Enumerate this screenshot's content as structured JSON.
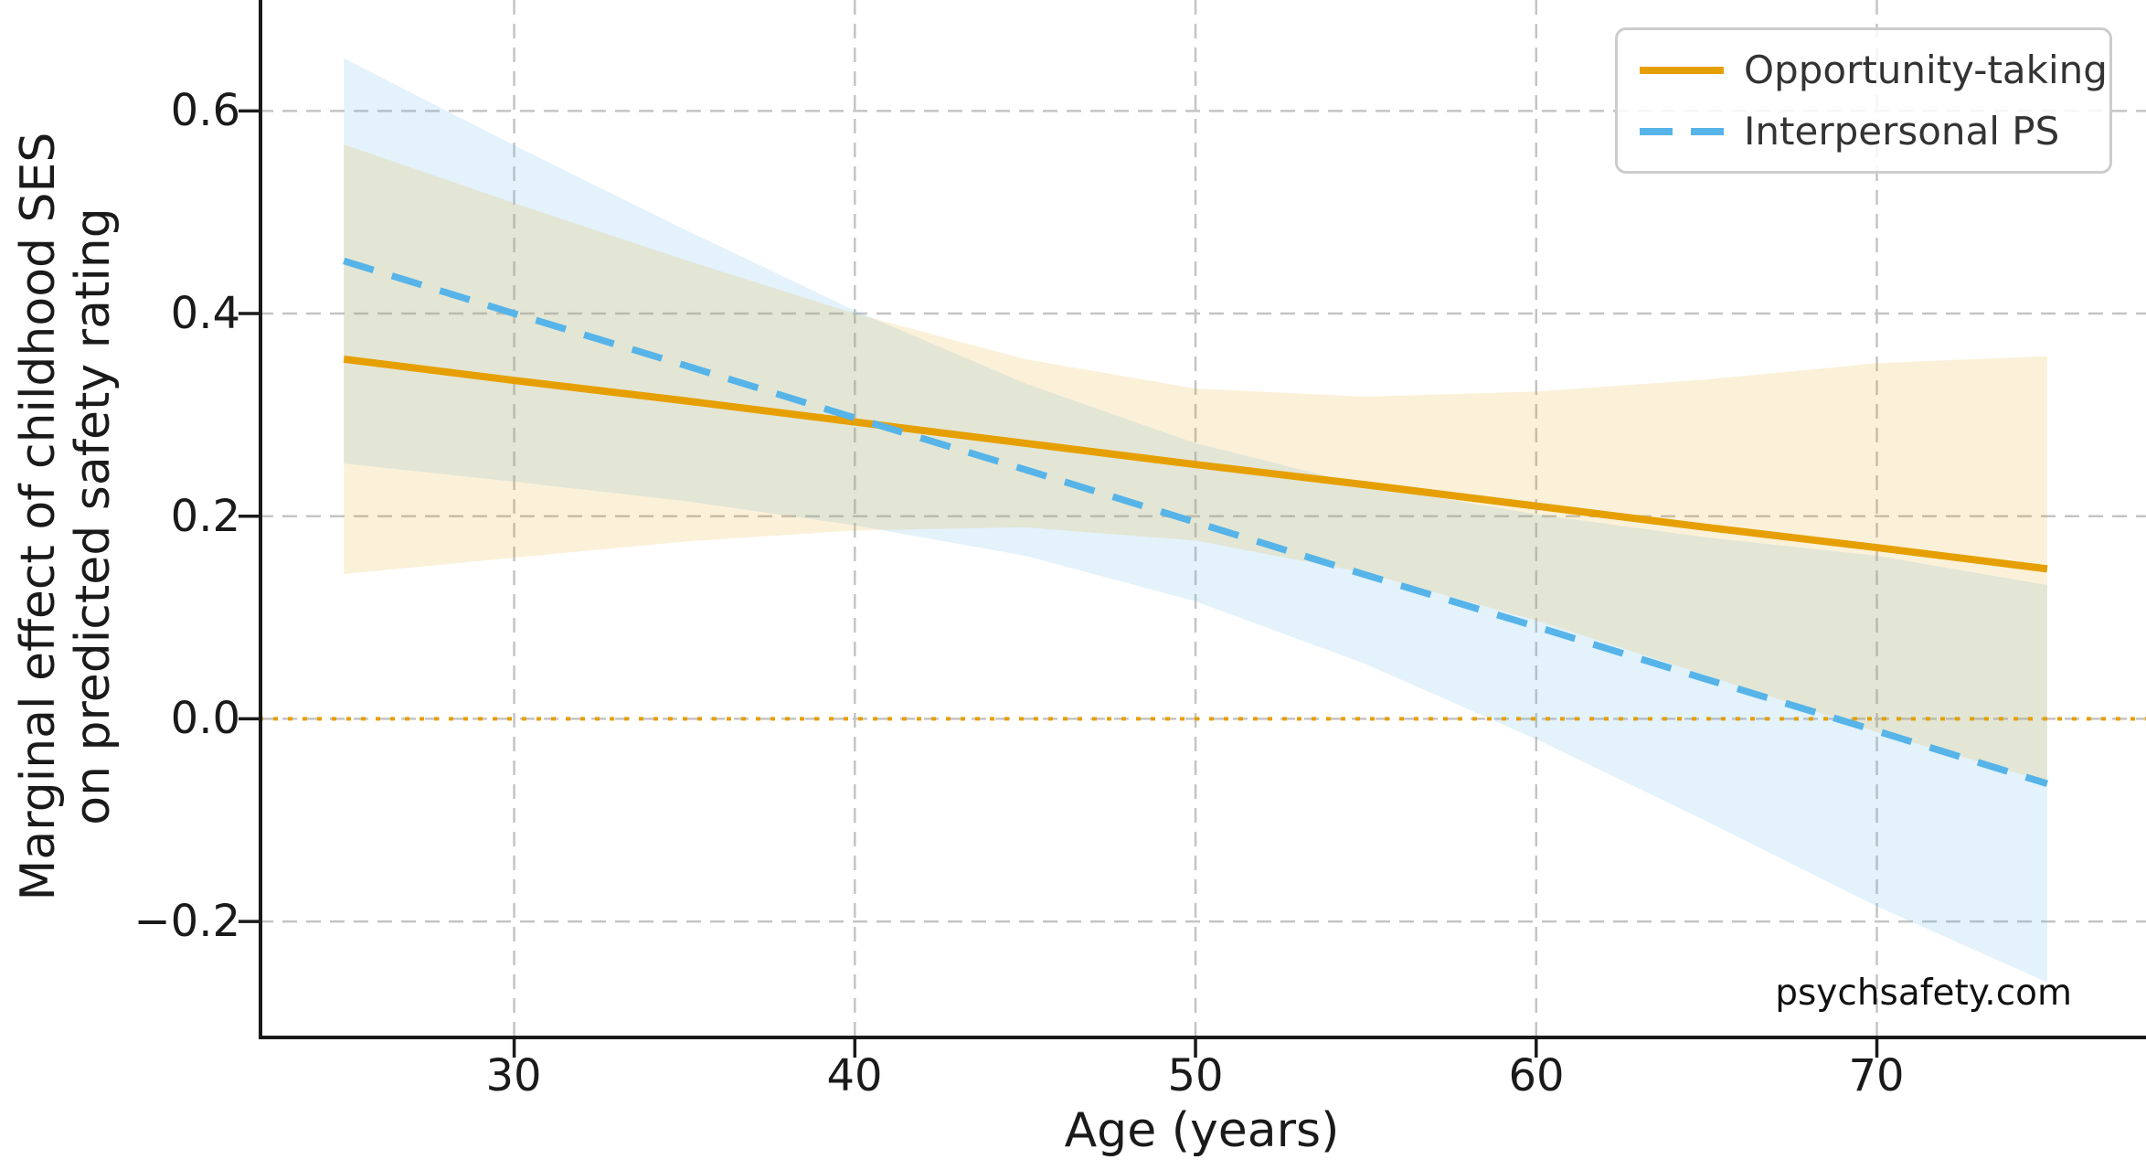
{
  "page": {
    "background": "#ffffff",
    "watermark": "psychsafety.com"
  },
  "chart_data": {
    "type": "line",
    "title": "",
    "xlabel": "Age (years)",
    "ylabel_line1": "Marginal effect of childhood SES",
    "ylabel_line2": "on predicted safety rating",
    "xlim": [
      22.5,
      77.9
    ],
    "ylim": [
      -0.3145,
      0.7095
    ],
    "grid": true,
    "grid_style": "dashed",
    "legend_position": "upper right",
    "x_ticks": [
      30,
      40,
      50,
      60,
      70
    ],
    "x_tick_labels": [
      "30",
      "40",
      "50",
      "60",
      "70"
    ],
    "y_ticks": [
      0.6,
      0.4,
      0.2,
      0.0,
      -0.2
    ],
    "y_tick_labels": [
      "0.6",
      "0.4",
      "0.2",
      "0.0",
      "−0.2"
    ],
    "zero_line": {
      "y": 0.0,
      "style": "dotted",
      "color": "#E69F00"
    },
    "x": [
      25,
      30,
      35,
      40,
      45,
      50,
      55,
      60,
      65,
      70,
      75
    ],
    "series": [
      {
        "name": "Opportunity-taking",
        "color": "#E69F00",
        "style": "solid",
        "line_width": 8,
        "values": [
          0.355,
          0.334,
          0.314,
          0.293,
          0.272,
          0.251,
          0.231,
          0.21,
          0.189,
          0.169,
          0.148
        ],
        "ci_upper": [
          0.567,
          0.509,
          0.453,
          0.4,
          0.355,
          0.326,
          0.318,
          0.323,
          0.335,
          0.351,
          0.358
        ],
        "ci_lower": [
          0.143,
          0.159,
          0.175,
          0.186,
          0.189,
          0.176,
          0.144,
          0.097,
          0.043,
          -0.013,
          -0.062
        ],
        "band_alpha": 0.15
      },
      {
        "name": "Interpersonal PS",
        "color": "#56B4E9",
        "style": "dashed",
        "line_width": 7.5,
        "values": [
          0.452,
          0.4,
          0.349,
          0.297,
          0.246,
          0.194,
          0.142,
          0.091,
          0.039,
          -0.012,
          -0.064
        ],
        "ci_upper": [
          0.652,
          0.566,
          0.483,
          0.403,
          0.331,
          0.272,
          0.23,
          0.202,
          0.179,
          0.161,
          0.132
        ],
        "ci_lower": [
          0.252,
          0.234,
          0.215,
          0.191,
          0.161,
          0.116,
          0.054,
          -0.02,
          -0.101,
          -0.185,
          -0.26
        ],
        "band_alpha": 0.17
      }
    ],
    "colors": {
      "grid": "#c4c4c4",
      "spine": "#1a1a1a",
      "tick_text": "#1a1a1a",
      "legend_border": "#cccccc",
      "legend_text": "#333333",
      "watermark_text": "#111111"
    }
  }
}
